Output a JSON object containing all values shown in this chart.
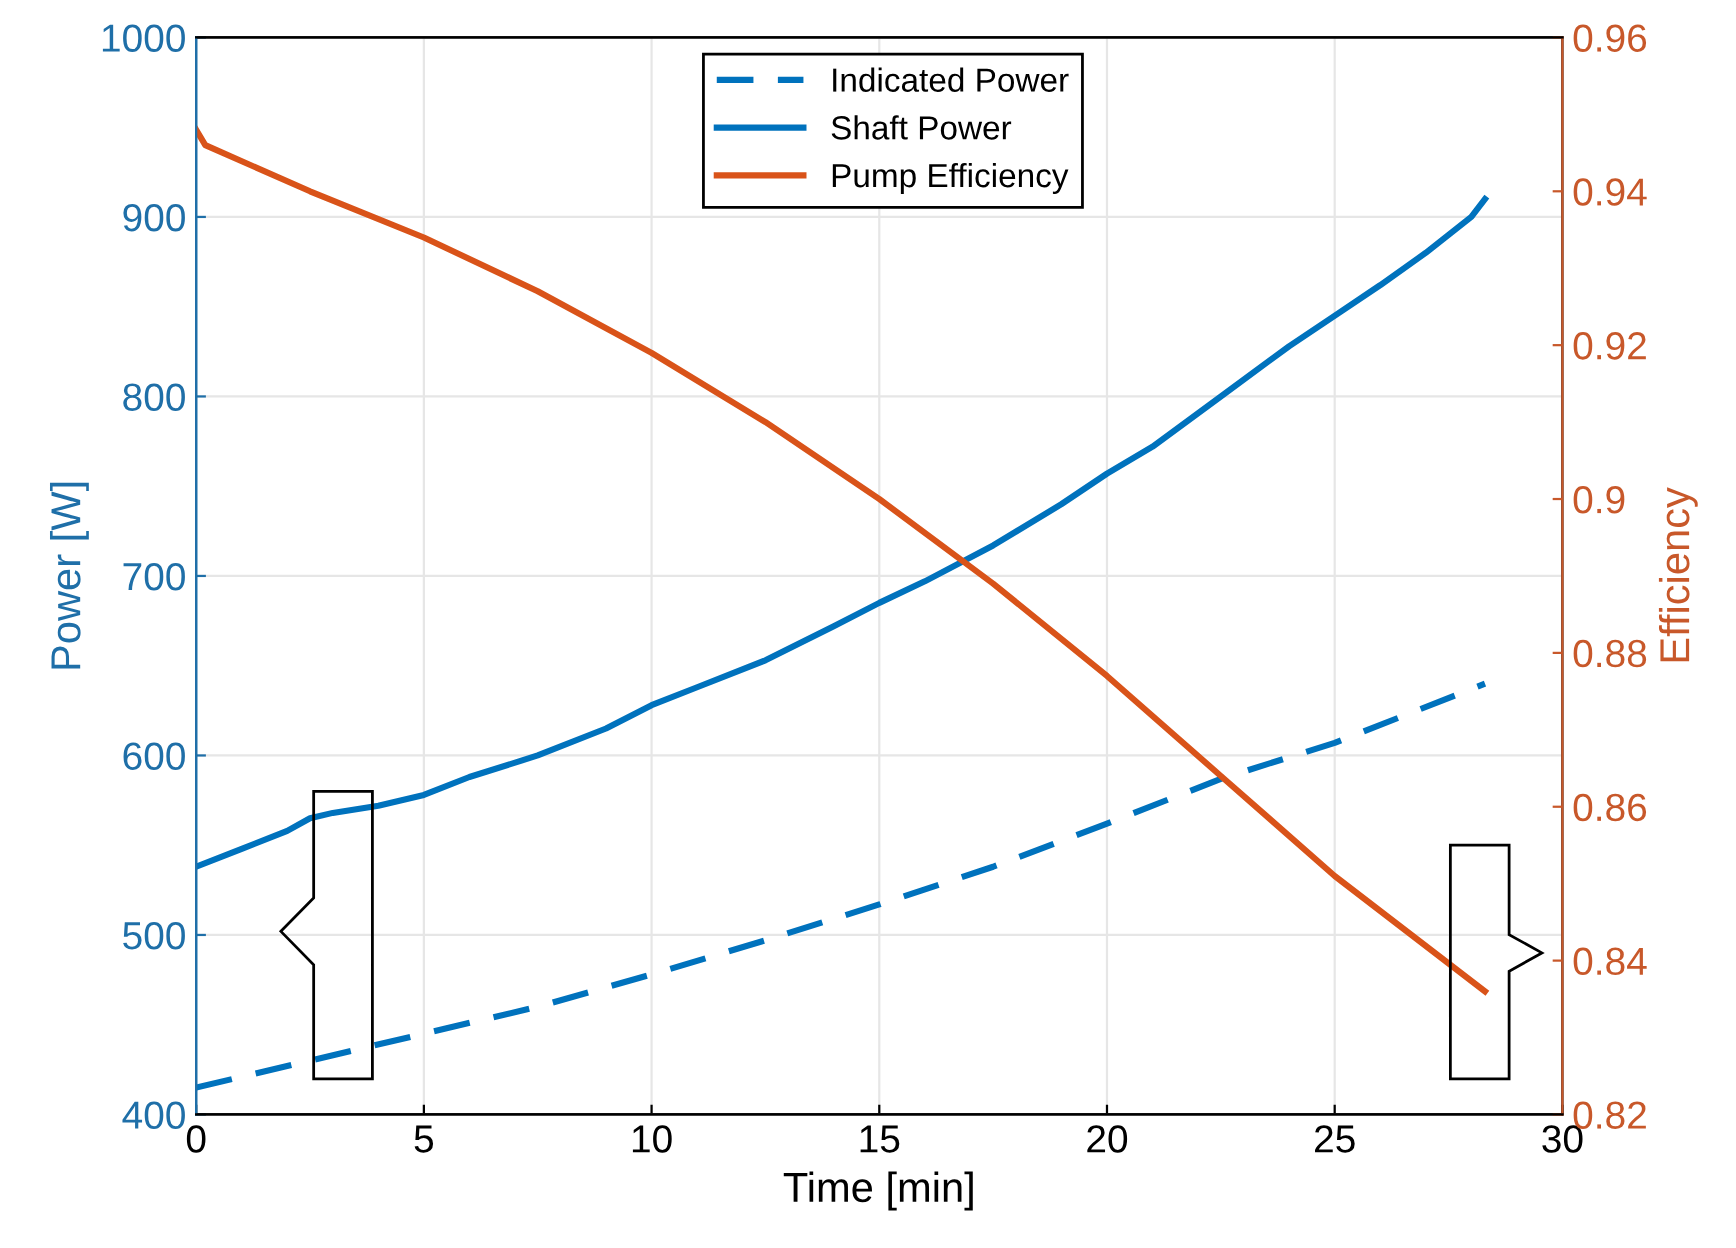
{
  "chart_data": {
    "type": "line",
    "xlabel": "Time [min]",
    "ylabel": "Power [W]",
    "y2label": "Efficiency",
    "xlim": [
      0,
      30
    ],
    "xticks": [
      0,
      5,
      10,
      15,
      20,
      25,
      30
    ],
    "ylim": [
      400,
      1000
    ],
    "yticks": [
      400,
      500,
      600,
      700,
      800,
      900,
      1000
    ],
    "y2lim": [
      0.82,
      0.96
    ],
    "y2ticks": [
      0.82,
      0.84,
      0.86,
      0.88,
      0.9,
      0.92,
      0.94,
      0.96
    ],
    "grid": true,
    "legend": "top",
    "marker": "none",
    "series": [
      {
        "name": "Indicated Power",
        "color": "#0072bd",
        "line_style": "dashed",
        "x": [
          0,
          2.5,
          5,
          7.5,
          10,
          12.5,
          15,
          17.5,
          20,
          22.5,
          25,
          28.3
        ],
        "values": [
          415,
          430,
          445,
          460,
          478,
          497,
          517,
          538,
          562,
          587,
          607,
          640
        ]
      },
      {
        "name": "Shaft Power",
        "color": "#0072bd",
        "line_style": "solid",
        "x": [
          0,
          1,
          2,
          2.5,
          3,
          4,
          5,
          6,
          7.5,
          9,
          10,
          11,
          12.5,
          14,
          15,
          16,
          17.5,
          19,
          20,
          21,
          22.5,
          24,
          25,
          26,
          27,
          28,
          28.3
        ],
        "values": [
          538,
          548,
          558,
          565,
          568,
          572,
          578,
          588,
          600,
          615,
          628,
          638,
          653,
          672,
          685,
          697,
          717,
          740,
          757,
          772,
          800,
          828,
          845,
          862,
          880,
          900,
          910
        ]
      },
      {
        "name": "Pump Efficiency",
        "color": "#d95319",
        "line_style": "solid",
        "axis": "y2",
        "x": [
          0,
          0.2,
          2.5,
          5,
          7.5,
          10,
          12.5,
          15,
          17.5,
          20,
          22.5,
          25,
          28.3
        ],
        "values": [
          0.948,
          0.946,
          0.94,
          0.934,
          0.927,
          0.919,
          0.91,
          0.9,
          0.889,
          0.877,
          0.864,
          0.851,
          0.836
        ]
      }
    ]
  }
}
